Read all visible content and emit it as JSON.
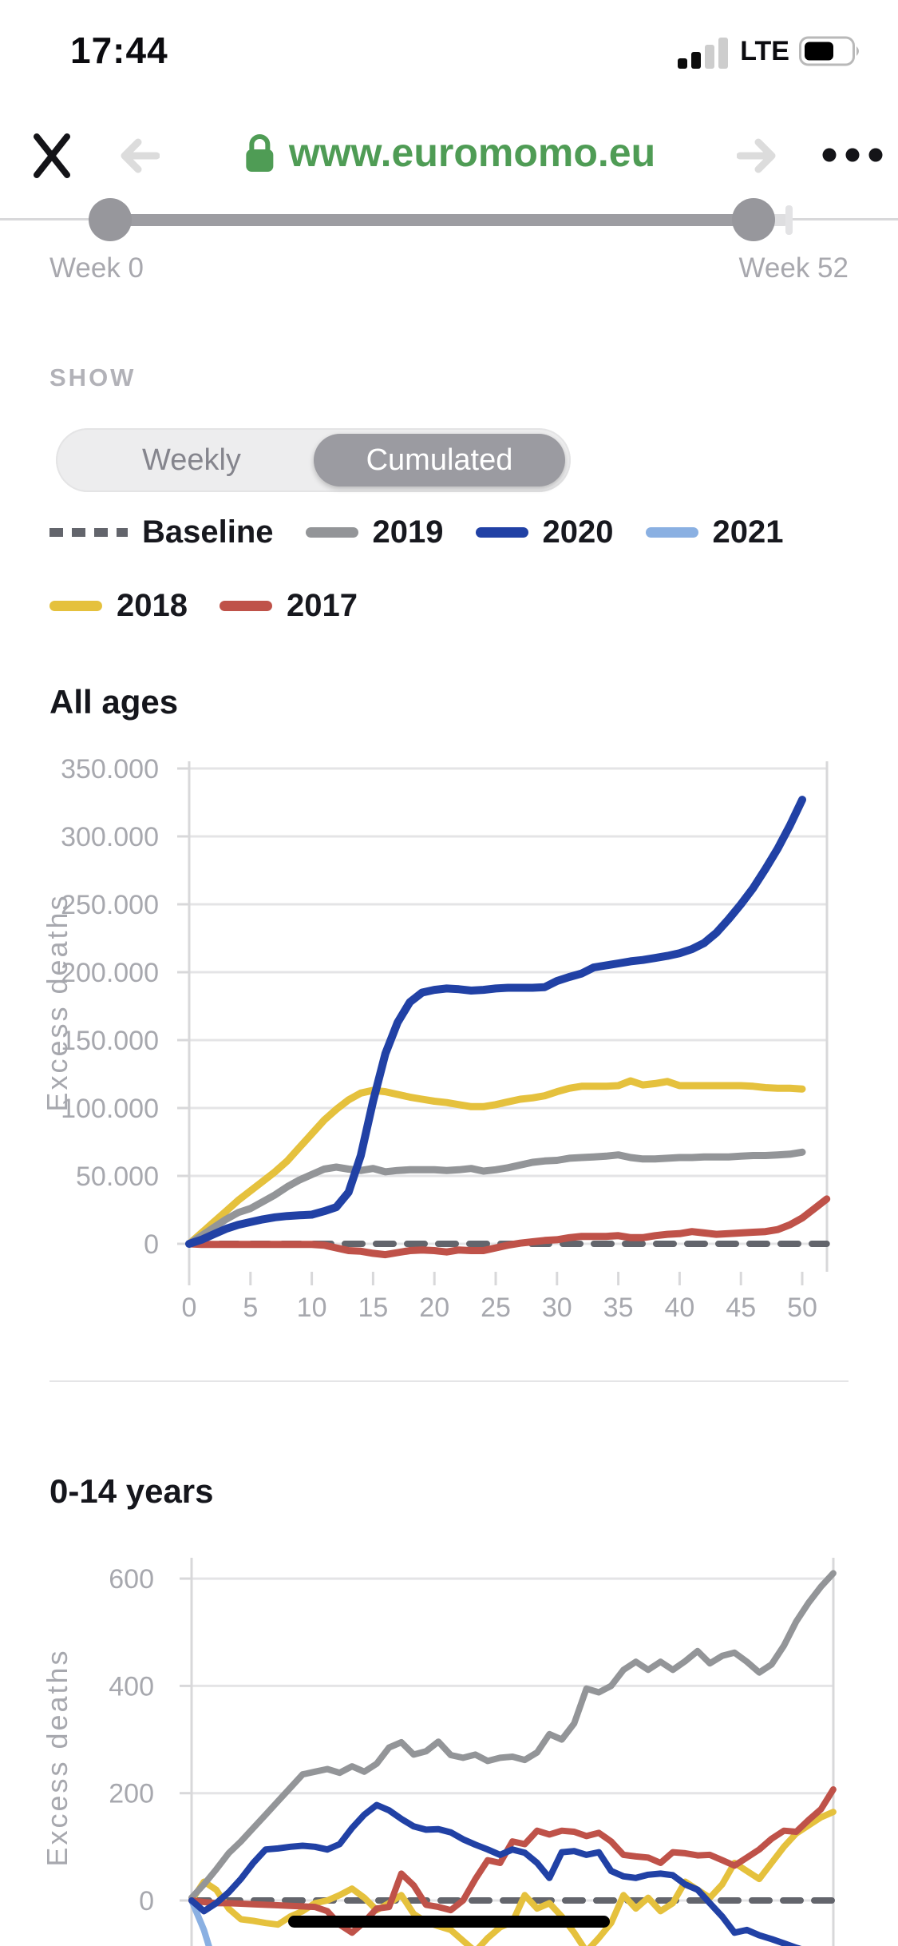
{
  "status_bar": {
    "time": "17:44",
    "network": "LTE"
  },
  "browser_bar": {
    "url": "www.euromomo.eu",
    "url_color": "#4f9c55"
  },
  "slider": {
    "start_label": "Week 0",
    "end_label": "Week 52"
  },
  "show_section": {
    "label": "SHOW"
  },
  "toggle": {
    "options": [
      "Weekly",
      "Cumulated"
    ],
    "selected": "Cumulated"
  },
  "legend": {
    "rows": [
      [
        {
          "label": "Baseline",
          "color": "#63656c",
          "dashed": true
        },
        {
          "label": "2019",
          "color": "#939598",
          "dashed": false
        },
        {
          "label": "2020",
          "color": "#2141a5",
          "dashed": false
        },
        {
          "label": "2021",
          "color": "#8ab0e2",
          "dashed": false
        }
      ],
      [
        {
          "label": "2018",
          "color": "#e5c13d",
          "dashed": false
        },
        {
          "label": "2017",
          "color": "#bf5249",
          "dashed": false
        }
      ]
    ]
  },
  "chart_style": {
    "grid": "#e4e4e6",
    "spine": "#d8d8da",
    "axis_text": "#a7a8ae"
  },
  "chart_data": [
    {
      "id": "all-ages",
      "type": "line",
      "title": "All ages",
      "ylabel": "Excess deaths",
      "y_unit": "thousands",
      "ylim": [
        -20,
        360
      ],
      "y_ticks": {
        "values": [
          0,
          50,
          100,
          150,
          200,
          250,
          300,
          350
        ],
        "labels": [
          "0",
          "50.000",
          "100.000",
          "150.000",
          "200.000",
          "250.000",
          "300.000",
          "350.000"
        ]
      },
      "x_ticks": {
        "values": [
          0,
          5,
          10,
          15,
          20,
          25,
          30,
          35,
          40,
          45,
          50
        ],
        "labels": [
          "0",
          "5",
          "10",
          "15",
          "20",
          "25",
          "30",
          "35",
          "40",
          "45",
          "50"
        ]
      },
      "series": [
        {
          "name": "Baseline",
          "color": "#63656c",
          "width": 8,
          "dash": [
            22,
            17
          ],
          "x": [
            0,
            52
          ],
          "v": [
            0,
            0
          ]
        },
        {
          "name": "2021",
          "color": "#8ab0e2",
          "width": 9,
          "dash": null,
          "x": [
            0,
            1
          ],
          "v": [
            0,
            2
          ]
        },
        {
          "name": "2018",
          "color": "#e5c13d",
          "width": 9,
          "dash": null,
          "x": [
            0,
            1,
            2,
            3,
            4,
            5,
            6,
            7,
            8,
            9,
            10,
            11,
            12,
            13,
            14,
            15,
            16,
            17,
            18,
            19,
            20,
            21,
            22,
            23,
            24,
            25,
            26,
            27,
            28,
            29,
            30,
            31,
            32,
            33,
            34,
            35,
            36,
            37,
            38,
            39,
            40,
            41,
            42,
            43,
            44,
            45,
            46,
            47,
            48,
            49,
            50
          ],
          "v": [
            0,
            8,
            16,
            24,
            32,
            39,
            46,
            53,
            61,
            71,
            81,
            91,
            99,
            106,
            111,
            113,
            112,
            110,
            108,
            106.5,
            105,
            104,
            102.5,
            101,
            101,
            102.5,
            104.5,
            106.5,
            107.5,
            109,
            112,
            114.5,
            116,
            116,
            116,
            116.5,
            120,
            117,
            118,
            119.5,
            116.5,
            116.5,
            116.5,
            116.5,
            116.5,
            116.5,
            116,
            115,
            114.5,
            114.5,
            114
          ]
        },
        {
          "name": "2019",
          "color": "#939598",
          "width": 9,
          "dash": null,
          "x": [
            0,
            1,
            2,
            3,
            4,
            5,
            6,
            7,
            8,
            9,
            10,
            11,
            12,
            13,
            14,
            15,
            16,
            17,
            18,
            19,
            20,
            21,
            22,
            23,
            24,
            25,
            26,
            27,
            28,
            29,
            30,
            31,
            32,
            33,
            34,
            35,
            36,
            37,
            38,
            39,
            40,
            41,
            42,
            43,
            44,
            45,
            46,
            47,
            48,
            49,
            50
          ],
          "v": [
            0,
            6,
            12,
            18,
            23,
            26,
            31,
            36,
            42,
            47,
            51,
            55,
            56.5,
            55,
            54,
            55.5,
            53,
            54,
            54.5,
            54.5,
            54.5,
            54,
            54.5,
            55.5,
            53.5,
            54.5,
            56,
            58,
            60,
            61,
            61.5,
            63,
            63.5,
            64,
            64.5,
            65.5,
            63.5,
            62.5,
            62.5,
            63,
            63.5,
            63.5,
            64,
            64,
            64,
            64.5,
            65,
            65,
            65.5,
            66,
            67.5
          ]
        },
        {
          "name": "2017",
          "color": "#bf5249",
          "width": 9,
          "dash": null,
          "x": [
            0,
            1,
            2,
            3,
            4,
            5,
            6,
            7,
            8,
            9,
            10,
            11,
            12,
            13,
            14,
            15,
            16,
            17,
            18,
            19,
            20,
            21,
            22,
            23,
            24,
            25,
            26,
            27,
            28,
            29,
            30,
            31,
            32,
            33,
            34,
            35,
            36,
            37,
            38,
            39,
            40,
            41,
            42,
            43,
            44,
            45,
            46,
            47,
            48,
            49,
            50,
            51,
            52
          ],
          "v": [
            0,
            -0.5,
            -0.5,
            -0.5,
            -0.5,
            -0.5,
            -0.5,
            -0.5,
            -0.5,
            -0.5,
            -0.5,
            -1,
            -3,
            -5,
            -5.5,
            -7,
            -8,
            -6.5,
            -5,
            -4.5,
            -5,
            -6,
            -4.5,
            -5,
            -5,
            -3,
            -1,
            0.5,
            1.5,
            2.5,
            3,
            4.5,
            5.5,
            5.5,
            5.5,
            6,
            4.5,
            4.5,
            6,
            7,
            7.5,
            9,
            8,
            7,
            7.5,
            8,
            8.5,
            9,
            10.5,
            14,
            19,
            26,
            33
          ]
        },
        {
          "name": "2020",
          "color": "#2141a5",
          "width": 10,
          "dash": null,
          "x": [
            0,
            1,
            2,
            3,
            4,
            5,
            6,
            7,
            8,
            9,
            10,
            11,
            12,
            13,
            14,
            15,
            16,
            17,
            18,
            19,
            20,
            21,
            22,
            23,
            24,
            25,
            26,
            27,
            28,
            29,
            30,
            31,
            32,
            33,
            34,
            35,
            36,
            37,
            38,
            39,
            40,
            41,
            42,
            43,
            44,
            45,
            46,
            47,
            48,
            49,
            50
          ],
          "v": [
            0,
            3,
            7,
            11,
            14,
            16,
            18,
            19.5,
            20.5,
            21,
            21.5,
            24,
            27,
            38,
            65,
            105,
            140,
            163,
            178,
            185,
            187,
            188,
            187.5,
            186.5,
            187,
            188,
            188.5,
            188.5,
            188.5,
            189,
            193.5,
            196.5,
            199,
            203.5,
            205,
            206.5,
            208,
            209,
            210.5,
            212,
            214,
            217,
            221.5,
            229,
            239,
            250,
            262,
            276,
            291,
            308,
            327
          ]
        }
      ]
    },
    {
      "id": "0-14",
      "type": "line",
      "title": "0-14 years",
      "ylabel": "Excess deaths",
      "y_unit": "deaths",
      "ylim": [
        -90,
        640
      ],
      "y_ticks": {
        "values": [
          0,
          200,
          400,
          600
        ],
        "labels": [
          "0",
          "200",
          "400",
          "600"
        ]
      },
      "x_ticks": null,
      "series": [
        {
          "name": "Baseline",
          "color": "#63656c",
          "width": 8,
          "dash": [
            22,
            17
          ],
          "x": [
            0,
            52
          ],
          "v": [
            0,
            0
          ]
        },
        {
          "name": "2021",
          "color": "#8ab0e2",
          "width": 8,
          "dash": null,
          "x": [
            0,
            1,
            2
          ],
          "v": [
            0,
            -55,
            -130
          ]
        },
        {
          "name": "2018",
          "color": "#e5c13d",
          "width": 8,
          "dash": null,
          "x": [
            0,
            1,
            2,
            3,
            4,
            5,
            6,
            7,
            8,
            9,
            10,
            11,
            12,
            13,
            14,
            15,
            16,
            17,
            18,
            19,
            20,
            21,
            22,
            23,
            24,
            25,
            26,
            27,
            28,
            29,
            30,
            31,
            32,
            33,
            34,
            35,
            36,
            37,
            38,
            39,
            40,
            41,
            42,
            43,
            44,
            45,
            46,
            47,
            48,
            49,
            50,
            51,
            52
          ],
          "v": [
            0,
            35,
            20,
            -15,
            -35,
            -38,
            -42,
            -45,
            -30,
            -20,
            -5,
            0,
            10,
            22,
            5,
            -18,
            -5,
            10,
            -25,
            -40,
            -48,
            -55,
            -75,
            -95,
            -70,
            -50,
            -40,
            10,
            -15,
            -5,
            -30,
            -60,
            -95,
            -70,
            -42,
            10,
            -15,
            5,
            -20,
            -5,
            35,
            20,
            5,
            30,
            70,
            55,
            40,
            70,
            100,
            125,
            140,
            155,
            165
          ]
        },
        {
          "name": "2019",
          "color": "#939598",
          "width": 8,
          "dash": null,
          "x": [
            0,
            1,
            2,
            3,
            4,
            5,
            6,
            7,
            8,
            9,
            10,
            11,
            12,
            13,
            14,
            15,
            16,
            17,
            18,
            19,
            20,
            21,
            22,
            23,
            24,
            25,
            26,
            27,
            28,
            29,
            30,
            31,
            32,
            33,
            34,
            35,
            36,
            37,
            38,
            39,
            40,
            41,
            42,
            43,
            44,
            45,
            46,
            47,
            48,
            49,
            50,
            51,
            52
          ],
          "v": [
            5,
            30,
            58,
            88,
            110,
            135,
            160,
            185,
            210,
            235,
            240,
            245,
            238,
            250,
            240,
            255,
            285,
            295,
            272,
            278,
            296,
            271,
            266,
            272,
            260,
            266,
            268,
            262,
            276,
            310,
            300,
            330,
            395,
            388,
            400,
            430,
            445,
            430,
            445,
            430,
            446,
            465,
            442,
            456,
            462,
            445,
            425,
            440,
            475,
            520,
            555,
            585,
            610
          ]
        },
        {
          "name": "2017",
          "color": "#bf5249",
          "width": 8,
          "dash": null,
          "x": [
            0,
            1,
            2,
            3,
            4,
            5,
            6,
            7,
            8,
            9,
            10,
            11,
            12,
            13,
            14,
            15,
            16,
            17,
            18,
            19,
            20,
            21,
            22,
            23,
            24,
            25,
            26,
            27,
            28,
            29,
            30,
            31,
            32,
            33,
            34,
            35,
            36,
            37,
            38,
            39,
            40,
            41,
            42,
            43,
            44,
            45,
            46,
            47,
            48,
            49,
            50,
            51,
            52
          ],
          "v": [
            0,
            -3,
            -5,
            -5,
            -6,
            -7,
            -8,
            -9,
            -10,
            -11,
            -12,
            -20,
            -45,
            -60,
            -40,
            -15,
            -12,
            50,
            28,
            -8,
            -12,
            -18,
            0,
            40,
            75,
            70,
            110,
            105,
            130,
            123,
            130,
            128,
            120,
            126,
            110,
            85,
            82,
            80,
            70,
            90,
            88,
            84,
            85,
            75,
            65,
            80,
            95,
            115,
            130,
            128,
            150,
            170,
            207
          ]
        },
        {
          "name": "2020",
          "color": "#2141a5",
          "width": 8,
          "dash": null,
          "x": [
            0,
            1,
            2,
            3,
            4,
            5,
            6,
            7,
            8,
            9,
            10,
            11,
            12,
            13,
            14,
            15,
            16,
            17,
            18,
            19,
            20,
            21,
            22,
            23,
            24,
            25,
            26,
            27,
            28,
            29,
            30,
            31,
            32,
            33,
            34,
            35,
            36,
            37,
            38,
            39,
            40,
            41,
            42,
            43,
            44,
            45,
            46,
            47,
            48,
            49,
            50
          ],
          "v": [
            0,
            -20,
            -5,
            15,
            40,
            70,
            95,
            97,
            100,
            102,
            100,
            95,
            105,
            135,
            160,
            178,
            168,
            152,
            138,
            132,
            133,
            127,
            114,
            104,
            95,
            85,
            95,
            89,
            70,
            42,
            90,
            92,
            85,
            90,
            55,
            45,
            42,
            48,
            50,
            47,
            30,
            20,
            -5,
            -30,
            -60,
            -55,
            -65,
            -72,
            -80,
            -88,
            -95
          ]
        }
      ]
    }
  ]
}
